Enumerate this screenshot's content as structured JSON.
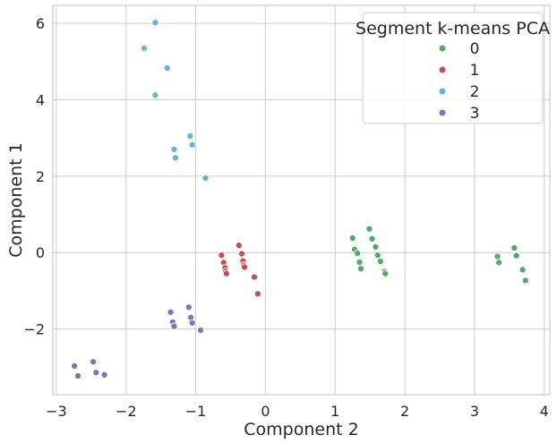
{
  "chart_data": {
    "type": "scatter",
    "title": "",
    "xlabel": "Component 2",
    "ylabel": "Component 1",
    "xlim": [
      -3.05,
      4.08
    ],
    "ylim": [
      -3.72,
      6.47
    ],
    "xticks": [
      -3,
      -2,
      -1,
      0,
      1,
      2,
      3,
      4
    ],
    "yticks": [
      -2,
      0,
      2,
      4,
      6
    ],
    "grid": true,
    "legend": {
      "title": "Segment k-means PCA",
      "placement": "top-right"
    },
    "series": [
      {
        "name": "0",
        "color": "#55a868",
        "points": [
          [
            1.25,
            0.38
          ],
          [
            1.28,
            0.08
          ],
          [
            1.32,
            -0.02
          ],
          [
            1.35,
            -0.25
          ],
          [
            1.37,
            -0.42
          ],
          [
            1.49,
            0.62
          ],
          [
            1.53,
            0.36
          ],
          [
            1.58,
            0.15
          ],
          [
            1.61,
            -0.07
          ],
          [
            1.65,
            -0.23
          ],
          [
            1.71,
            -0.5
          ],
          [
            1.72,
            -0.55
          ],
          [
            3.33,
            -0.1
          ],
          [
            3.35,
            -0.26
          ],
          [
            3.57,
            0.12
          ],
          [
            3.6,
            -0.08
          ],
          [
            3.69,
            -0.45
          ],
          [
            3.73,
            -0.73
          ]
        ]
      },
      {
        "name": "1",
        "color": "#c44e52",
        "points": [
          [
            -0.63,
            -0.07
          ],
          [
            -0.6,
            -0.26
          ],
          [
            -0.58,
            -0.4
          ],
          [
            -0.57,
            -0.49
          ],
          [
            -0.56,
            -0.55
          ],
          [
            -0.38,
            0.19
          ],
          [
            -0.34,
            -0.03
          ],
          [
            -0.32,
            -0.22
          ],
          [
            -0.31,
            -0.33
          ],
          [
            -0.3,
            -0.38
          ],
          [
            -0.16,
            -0.64
          ],
          [
            -0.11,
            -1.08
          ]
        ]
      },
      {
        "name": "2",
        "color": "#64b5cd",
        "points": [
          [
            -1.58,
            6.02
          ],
          [
            -1.74,
            5.35
          ],
          [
            -1.41,
            4.83
          ],
          [
            -1.58,
            4.12
          ],
          [
            -1.31,
            2.7
          ],
          [
            -1.29,
            2.48
          ],
          [
            -1.08,
            3.05
          ],
          [
            -1.05,
            2.82
          ],
          [
            -0.86,
            1.95
          ]
        ]
      },
      {
        "name": "3",
        "color": "#8172b3",
        "points": [
          [
            -1.36,
            -1.56
          ],
          [
            -1.33,
            -1.82
          ],
          [
            -1.31,
            -1.93
          ],
          [
            -1.1,
            -1.43
          ],
          [
            -1.07,
            -1.7
          ],
          [
            -1.05,
            -1.84
          ],
          [
            -0.93,
            -2.03
          ],
          [
            -2.74,
            -2.97
          ],
          [
            -2.69,
            -3.23
          ],
          [
            -2.47,
            -2.86
          ],
          [
            -2.43,
            -3.14
          ],
          [
            -2.31,
            -3.2
          ]
        ]
      }
    ]
  }
}
